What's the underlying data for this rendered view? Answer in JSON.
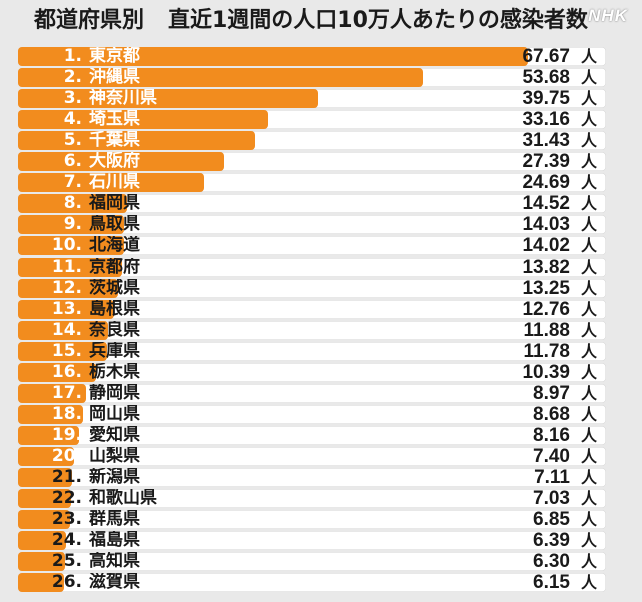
{
  "header": {
    "title_main": "都道府県別",
    "title_sub": "直近1週間の人口10万人あたりの感染者数",
    "logo": "NHK"
  },
  "colors": {
    "bar": "#f28c1e",
    "row_background": "#ffffff",
    "page_background": "#e9e9e9"
  },
  "chart_data": {
    "type": "bar",
    "orientation": "horizontal",
    "title": "都道府県別　直近1週間の人口10万人あたりの感染者数",
    "unit": "人",
    "xlim": [
      0,
      67.67
    ],
    "rows": [
      {
        "rank": "1.",
        "pref": "東京都",
        "value": 67.67,
        "value_label": "67.67"
      },
      {
        "rank": "2.",
        "pref": "沖縄県",
        "value": 53.68,
        "value_label": "53.68"
      },
      {
        "rank": "3.",
        "pref": "神奈川県",
        "value": 39.75,
        "value_label": "39.75"
      },
      {
        "rank": "4.",
        "pref": "埼玉県",
        "value": 33.16,
        "value_label": "33.16"
      },
      {
        "rank": "5.",
        "pref": "千葉県",
        "value": 31.43,
        "value_label": "31.43"
      },
      {
        "rank": "6.",
        "pref": "大阪府",
        "value": 27.39,
        "value_label": "27.39"
      },
      {
        "rank": "7.",
        "pref": "石川県",
        "value": 24.69,
        "value_label": "24.69"
      },
      {
        "rank": "8.",
        "pref": "福岡県",
        "value": 14.52,
        "value_label": "14.52"
      },
      {
        "rank": "9.",
        "pref": "鳥取県",
        "value": 14.03,
        "value_label": "14.03"
      },
      {
        "rank": "10.",
        "pref": "北海道",
        "value": 14.02,
        "value_label": "14.02"
      },
      {
        "rank": "11.",
        "pref": "京都府",
        "value": 13.82,
        "value_label": "13.82"
      },
      {
        "rank": "12.",
        "pref": "茨城県",
        "value": 13.25,
        "value_label": "13.25"
      },
      {
        "rank": "13.",
        "pref": "島根県",
        "value": 12.76,
        "value_label": "12.76"
      },
      {
        "rank": "14.",
        "pref": "奈良県",
        "value": 11.88,
        "value_label": "11.88"
      },
      {
        "rank": "15.",
        "pref": "兵庫県",
        "value": 11.78,
        "value_label": "11.78"
      },
      {
        "rank": "16.",
        "pref": "栃木県",
        "value": 10.39,
        "value_label": "10.39"
      },
      {
        "rank": "17.",
        "pref": "静岡県",
        "value": 8.97,
        "value_label": "8.97"
      },
      {
        "rank": "18.",
        "pref": "岡山県",
        "value": 8.68,
        "value_label": "8.68"
      },
      {
        "rank": "19.",
        "pref": "愛知県",
        "value": 8.16,
        "value_label": "8.16"
      },
      {
        "rank": "20.",
        "pref": "山梨県",
        "value": 7.4,
        "value_label": "7.40"
      },
      {
        "rank": "21.",
        "pref": "新潟県",
        "value": 7.11,
        "value_label": "7.11"
      },
      {
        "rank": "22.",
        "pref": "和歌山県",
        "value": 7.03,
        "value_label": "7.03"
      },
      {
        "rank": "23.",
        "pref": "群馬県",
        "value": 6.85,
        "value_label": "6.85"
      },
      {
        "rank": "24.",
        "pref": "福島県",
        "value": 6.39,
        "value_label": "6.39"
      },
      {
        "rank": "25.",
        "pref": "高知県",
        "value": 6.3,
        "value_label": "6.30"
      },
      {
        "rank": "26.",
        "pref": "滋賀県",
        "value": 6.15,
        "value_label": "6.15"
      }
    ]
  }
}
